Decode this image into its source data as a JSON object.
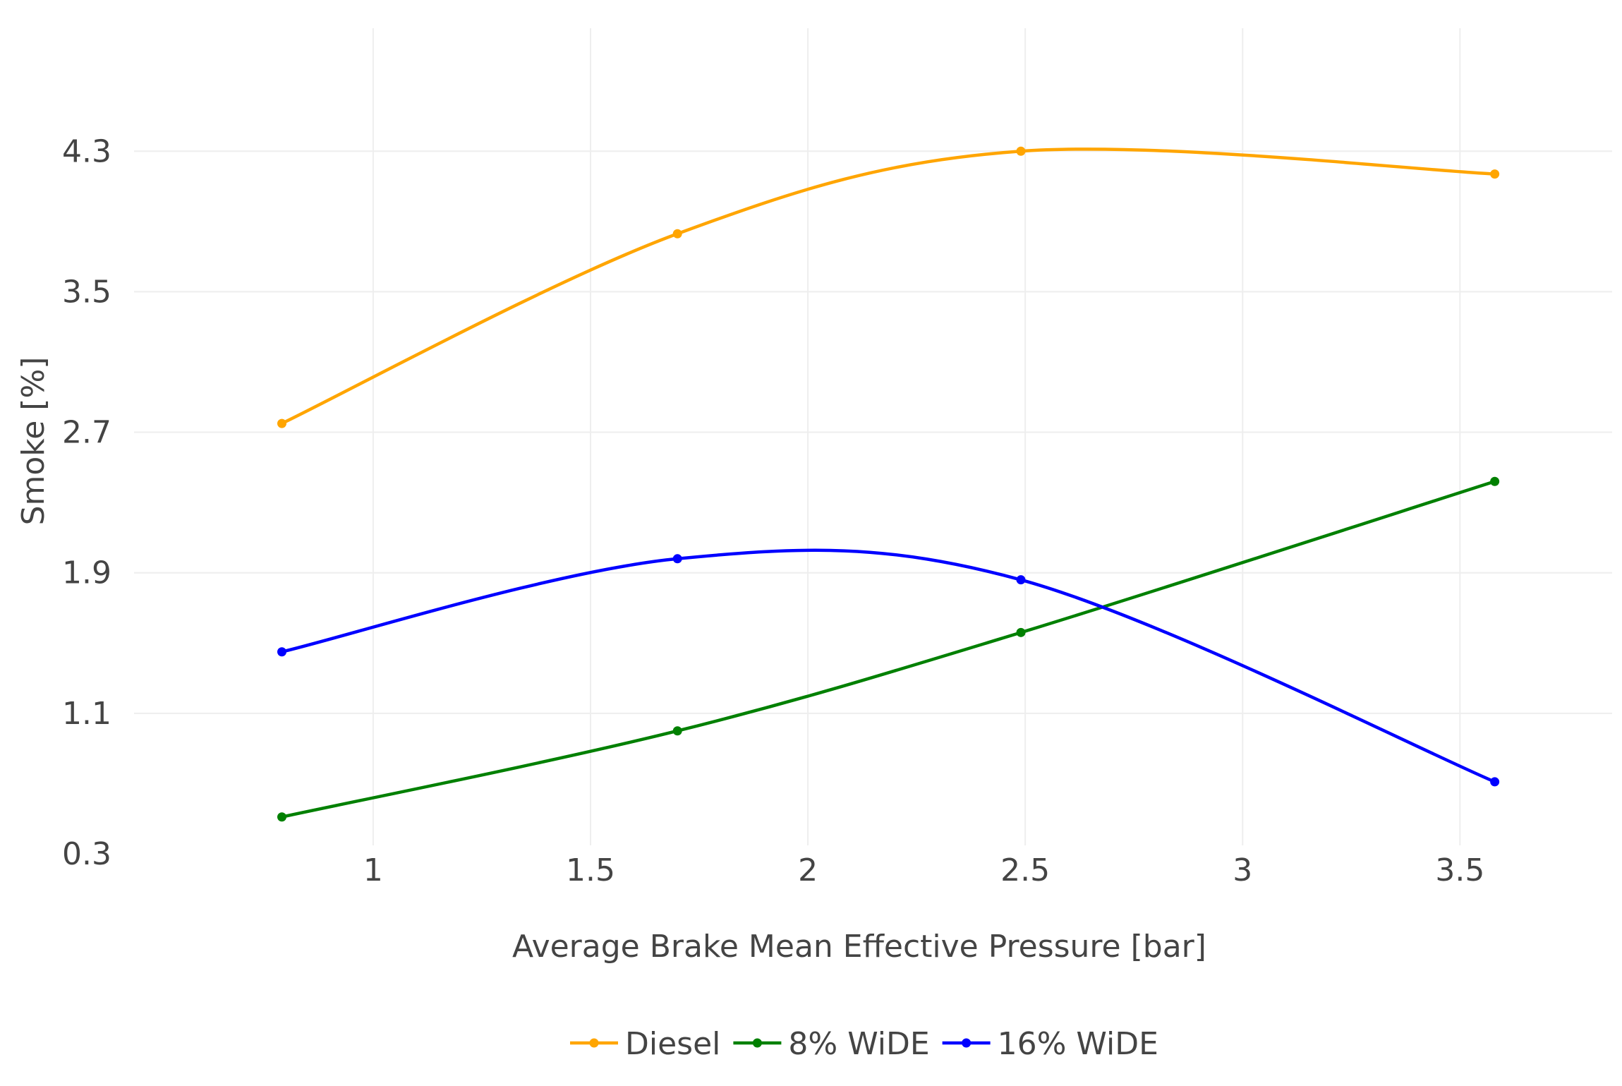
{
  "chart_data": {
    "type": "line",
    "title": "",
    "xlabel": "Average Brake Mean Effective Pressure [bar]",
    "ylabel": "Smoke [%]",
    "xlim": [
      0.45,
      3.85
    ],
    "ylim": [
      0.3,
      5.0
    ],
    "x_ticks": [
      1,
      1.5,
      2,
      2.5,
      3,
      3.5
    ],
    "x_tick_labels": [
      "1",
      "1.5",
      "2",
      "2.5",
      "3",
      "3.5"
    ],
    "y_ticks": [
      0.3,
      1.1,
      1.9,
      2.7,
      3.5,
      4.3
    ],
    "y_tick_labels": [
      "0.3",
      "1.1",
      "1.9",
      "2.7",
      "3.5",
      "4.3"
    ],
    "grid": true,
    "line_shape": "spline",
    "legend_position": "bottom-center",
    "series": [
      {
        "name": "Diesel",
        "color": "#FFA500",
        "x": [
          0.79,
          1.7,
          2.49,
          3.58
        ],
        "y": [
          2.75,
          3.83,
          4.3,
          4.17
        ]
      },
      {
        "name": "8% WiDE",
        "color": "#008000",
        "x": [
          0.79,
          1.7,
          2.49,
          3.58
        ],
        "y": [
          0.51,
          1.0,
          1.56,
          2.42
        ]
      },
      {
        "name": "16% WiDE",
        "color": "#0000FF",
        "x": [
          0.79,
          1.7,
          2.49,
          3.58
        ],
        "y": [
          1.45,
          1.98,
          1.86,
          0.71
        ]
      }
    ]
  }
}
